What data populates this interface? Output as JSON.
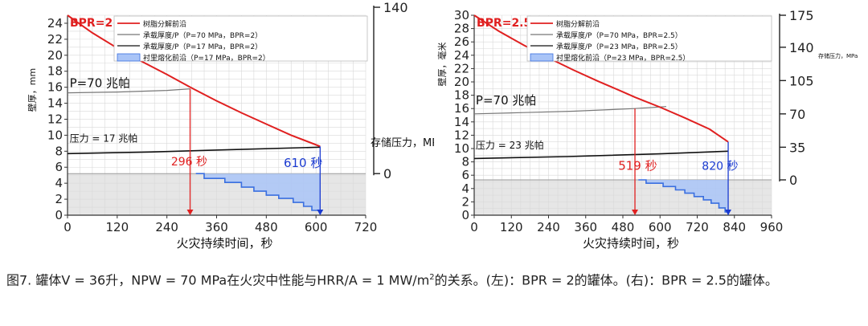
{
  "caption": {
    "part1": "图7. 罐体V = 36升，NPW = 70 MPa在火灾中性能与HRR/A = 1 MW/m",
    "sup": "2",
    "part2": "的关系。(左)：BPR = 2的罐体。(右)：BPR = 2.5的罐体。"
  },
  "chart_data": [
    {
      "type": "line",
      "bpr_label": "BPR=2",
      "xlabel": "火灾持续时间，秒",
      "ylabel_left": "壁厚，mm",
      "ylabel_right": "存储压力，MPa",
      "xlim": [
        0,
        720
      ],
      "x_ticks": [
        0,
        120,
        240,
        360,
        480,
        600,
        720
      ],
      "ylim": [
        0,
        25
      ],
      "y_ticks": [
        0,
        2,
        4,
        6,
        8,
        10,
        12,
        14,
        16,
        18,
        20,
        22,
        24
      ],
      "y2_ticks": [
        {
          "value": 0,
          "at": 5.2
        },
        {
          "value": 140,
          "at": 26
        }
      ],
      "legend": [
        {
          "label": "树脂分解前沿",
          "color": "#e02020"
        },
        {
          "label": "承载厚度/P（P=70 MPa，BPR=2）",
          "color": "#777777"
        },
        {
          "label": "承载厚度/P（P=17 MPa，BPR=2）",
          "color": "#111111"
        },
        {
          "label": "衬里熔化前沿（P=17 MPa，BPR=2）",
          "color": "#5b8def"
        }
      ],
      "resin_front": [
        [
          0,
          25
        ],
        [
          60,
          22.8
        ],
        [
          120,
          20.9
        ],
        [
          180,
          19.2
        ],
        [
          240,
          17.6
        ],
        [
          300,
          15.9
        ],
        [
          360,
          14.3
        ],
        [
          420,
          12.8
        ],
        [
          480,
          11.4
        ],
        [
          540,
          10.0
        ],
        [
          610,
          8.6
        ]
      ],
      "p70_line": [
        [
          0,
          15.3
        ],
        [
          120,
          15.4
        ],
        [
          240,
          15.6
        ],
        [
          296,
          15.8
        ]
      ],
      "p17_line": [
        [
          0,
          7.7
        ],
        [
          200,
          7.9
        ],
        [
          400,
          8.2
        ],
        [
          610,
          8.5
        ]
      ],
      "liner_steps": [
        [
          310,
          5.2
        ],
        [
          330,
          4.6
        ],
        [
          380,
          4.1
        ],
        [
          420,
          3.5
        ],
        [
          450,
          3.0
        ],
        [
          480,
          2.5
        ],
        [
          510,
          2.1
        ],
        [
          545,
          1.6
        ],
        [
          570,
          1.1
        ],
        [
          590,
          0.6
        ],
        [
          610,
          0.1
        ]
      ],
      "gray_band_top": 5.2,
      "annotations": [
        {
          "text": "P=70 兆帕",
          "x": 5,
          "y": 16.0,
          "color": "#111111",
          "size": 15
        },
        {
          "text": "压力 = 17 兆帕",
          "x": 5,
          "y": 9.2,
          "color": "#111111",
          "size": 12
        },
        {
          "text": "296 秒",
          "x": 250,
          "y": 6.2,
          "color": "#e02020",
          "size": 14
        },
        {
          "text": "610 秒",
          "x": 522,
          "y": 6.0,
          "color": "#1a3ad0",
          "size": 15
        }
      ],
      "markers": [
        {
          "x": 296,
          "from": 15.8,
          "color": "#e02020"
        },
        {
          "x": 610,
          "from": 8.6,
          "color": "#1a3ad0"
        }
      ]
    },
    {
      "type": "line",
      "bpr_label": "BPR=2.5",
      "xlabel": "火灾持续时间，秒",
      "ylabel_left": "壁厚，毫米",
      "ylabel_right": "存储压力，MPa",
      "xlim": [
        0,
        960
      ],
      "x_ticks": [
        0,
        120,
        240,
        360,
        480,
        600,
        720,
        840,
        960
      ],
      "ylim": [
        0,
        30
      ],
      "y_ticks": [
        0,
        2,
        4,
        6,
        8,
        10,
        12,
        14,
        16,
        18,
        20,
        22,
        24,
        26,
        28,
        30
      ],
      "y2_ticks": [
        {
          "value": 0,
          "at": 5.3
        },
        {
          "value": 35,
          "at": 10.2
        },
        {
          "value": 70,
          "at": 15.2
        },
        {
          "value": "105",
          "at": 20.2
        },
        {
          "value": "140",
          "at": 25.2
        },
        {
          "value": 175,
          "at": 30
        }
      ],
      "legend": [
        {
          "label": "树脂分解前沿",
          "color": "#e02020"
        },
        {
          "label": "承载厚度/P（P=70 MPa，BPR=2.5）",
          "color": "#777777"
        },
        {
          "label": "承载厚度/P（P=23 MPa，BPR=2.5）",
          "color": "#111111"
        },
        {
          "label": "衬里熔化前沿（P=23 MPa，BPR=2.5）",
          "color": "#5b8def"
        }
      ],
      "resin_front": [
        [
          0,
          30
        ],
        [
          80,
          27.6
        ],
        [
          160,
          25.5
        ],
        [
          240,
          23.6
        ],
        [
          320,
          21.8
        ],
        [
          400,
          20.1
        ],
        [
          480,
          18.5
        ],
        [
          519,
          17.7
        ],
        [
          600,
          16.2
        ],
        [
          680,
          14.6
        ],
        [
          760,
          12.9
        ],
        [
          820,
          11.0
        ]
      ],
      "p70_line": [
        [
          0,
          15.2
        ],
        [
          160,
          15.4
        ],
        [
          320,
          15.6
        ],
        [
          519,
          16.0
        ],
        [
          620,
          16.3
        ]
      ],
      "p23_line": [
        [
          0,
          8.5
        ],
        [
          300,
          8.8
        ],
        [
          600,
          9.2
        ],
        [
          820,
          9.6
        ]
      ],
      "liner_steps": [
        [
          530,
          5.3
        ],
        [
          555,
          4.8
        ],
        [
          610,
          4.3
        ],
        [
          650,
          3.8
        ],
        [
          680,
          3.3
        ],
        [
          710,
          2.8
        ],
        [
          740,
          2.3
        ],
        [
          765,
          1.8
        ],
        [
          790,
          1.1
        ],
        [
          810,
          0.5
        ],
        [
          820,
          0.1
        ]
      ],
      "gray_band_top": 5.3,
      "annotations": [
        {
          "text": "P=70 兆帕",
          "x": 5,
          "y": 16.6,
          "color": "#111111",
          "size": 15
        },
        {
          "text": "压力 = 23 兆帕",
          "x": 5,
          "y": 10.0,
          "color": "#111111",
          "size": 12
        },
        {
          "text": "519 秒",
          "x": 465,
          "y": 6.8,
          "color": "#e02020",
          "size": 15
        },
        {
          "text": "820 秒",
          "x": 735,
          "y": 6.8,
          "color": "#1a3ad0",
          "size": 14
        }
      ],
      "markers": [
        {
          "x": 519,
          "from": 16.0,
          "color": "#e02020"
        },
        {
          "x": 820,
          "from": 11.0,
          "color": "#1a3ad0"
        }
      ]
    }
  ]
}
